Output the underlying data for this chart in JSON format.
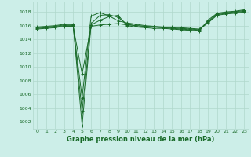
{
  "title": "Graphe pression niveau de la mer (hPa)",
  "bg_color": "#cceee8",
  "grid_color": "#b0d8cc",
  "line_color": "#1a6b2a",
  "xlim": [
    -0.5,
    23.5
  ],
  "ylim": [
    1001.0,
    1019.5
  ],
  "yticks": [
    1002,
    1004,
    1006,
    1008,
    1010,
    1012,
    1014,
    1016,
    1018
  ],
  "xticks": [
    0,
    1,
    2,
    3,
    4,
    5,
    6,
    7,
    8,
    9,
    10,
    11,
    12,
    13,
    14,
    15,
    16,
    17,
    18,
    19,
    20,
    21,
    22,
    23
  ],
  "series": [
    [
      1015.8,
      1015.9,
      1016.0,
      1016.2,
      1016.2,
      1001.5,
      1016.1,
      1016.8,
      1017.3,
      1017.5,
      1016.0,
      1015.8,
      1015.7,
      1015.6,
      1015.6,
      1015.5,
      1015.4,
      1015.3,
      1015.2,
      1016.8,
      1017.8,
      1018.0,
      1018.1,
      1018.3
    ],
    [
      1015.7,
      1015.8,
      1015.9,
      1016.1,
      1016.1,
      1003.5,
      1016.3,
      1017.5,
      1017.6,
      1017.2,
      1016.2,
      1016.0,
      1015.9,
      1015.8,
      1015.7,
      1015.6,
      1015.5,
      1015.4,
      1015.3,
      1016.6,
      1017.7,
      1017.9,
      1018.0,
      1018.2
    ],
    [
      1015.6,
      1015.7,
      1015.8,
      1016.0,
      1016.0,
      1005.5,
      1017.4,
      1017.9,
      1017.4,
      1016.7,
      1016.4,
      1016.2,
      1016.0,
      1015.9,
      1015.8,
      1015.8,
      1015.7,
      1015.6,
      1015.5,
      1016.5,
      1017.6,
      1017.8,
      1017.9,
      1018.1
    ],
    [
      1015.5,
      1015.6,
      1015.7,
      1015.9,
      1015.9,
      1009.0,
      1015.9,
      1016.1,
      1016.2,
      1016.3,
      1016.1,
      1016.0,
      1015.9,
      1015.8,
      1015.7,
      1015.7,
      1015.6,
      1015.5,
      1015.4,
      1016.4,
      1017.5,
      1017.7,
      1017.8,
      1018.0
    ]
  ]
}
